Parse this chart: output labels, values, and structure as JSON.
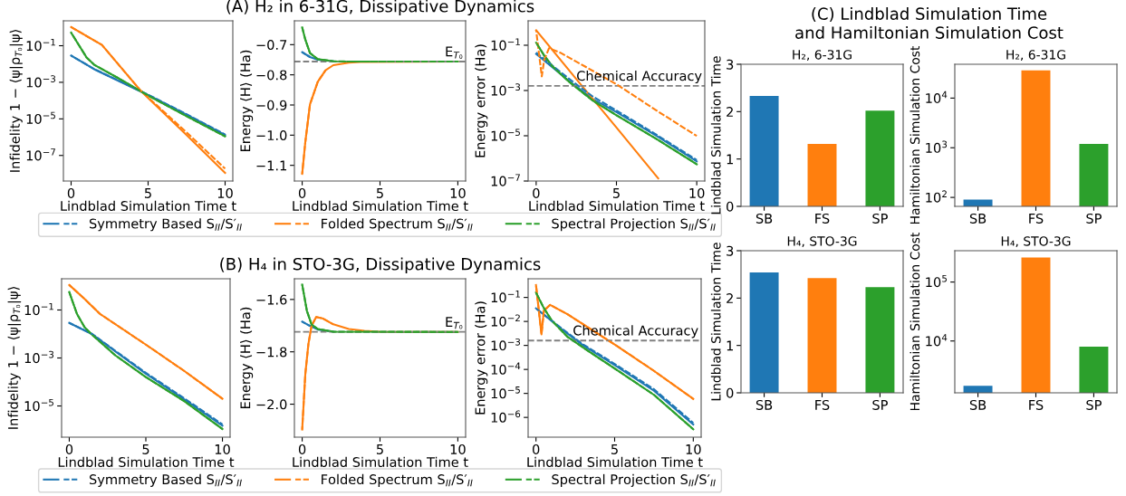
{
  "chart_data": [
    {
      "type": "line",
      "xlabel": "Lindblad Simulation Time t",
      "ylabel": "Infidelity 1 − ⟨ψ|ρ$_{T₀}$|ψ⟩",
      "log": true,
      "xlim": [
        -0.5,
        10.5
      ],
      "xticks": [
        0,
        5,
        10
      ],
      "ylim": [
        4e-09,
        2.3
      ],
      "yticks": [
        {
          "value": 0.1,
          "label": "10$^{−1}$"
        },
        {
          "value": 0.001,
          "label": "10$^{−3}$"
        },
        {
          "value": 1e-05,
          "label": "10$^{−5}$"
        },
        {
          "value": 1e-07,
          "label": "10$^{−7}$"
        }
      ],
      "series": [
        {
          "color": "#1f77b4",
          "x": [
            0,
            1.5,
            5,
            7.5,
            10
          ],
          "values": [
            0.029,
            0.0052,
            0.0002,
            1.7e-05,
            1.3e-06
          ]
        },
        {
          "color": "#1f77b4",
          "line_style": "dashed",
          "x": [
            0,
            1.5,
            5,
            7.5,
            10
          ],
          "values": [
            0.029,
            0.0053,
            0.00021,
            1.8e-05,
            1.4e-06
          ]
        },
        {
          "color": "#ff7f0e",
          "x": [
            0,
            2,
            4.5,
            5,
            7.5,
            10
          ],
          "values": [
            1.05,
            0.11,
            0.00036,
            0.00014,
            1.3e-06,
            1.1e-08
          ]
        },
        {
          "color": "#ff7f0e",
          "line_style": "dashed",
          "x": [
            0,
            2,
            4.5,
            5,
            7.5,
            10
          ],
          "values": [
            1.05,
            0.11,
            0.00036,
            0.00015,
            1.8e-06,
            1.9e-08
          ]
        },
        {
          "color": "#2ca02c",
          "x": [
            0,
            0.5,
            1,
            1.5,
            3,
            5,
            7.5,
            10
          ],
          "values": [
            0.52,
            0.11,
            0.023,
            0.0091,
            0.0018,
            0.00019,
            1.4e-05,
            1.1e-06
          ]
        },
        {
          "color": "#2ca02c",
          "line_style": "dashed",
          "x": [
            0,
            0.5,
            1,
            1.5,
            3,
            5,
            7.5,
            10
          ],
          "values": [
            0.52,
            0.11,
            0.023,
            0.0091,
            0.0018,
            0.00019,
            1.4e-05,
            1.1e-06
          ]
        }
      ]
    },
    {
      "type": "line",
      "title": "(A) H₂ in 6-31G, Dissipative Dynamics",
      "xlabel": "Lindblad Simulation Time t",
      "ylabel": "Energy ⟨H⟩ (Ha)",
      "legend": "bottom",
      "xlim": [
        -0.5,
        10.5
      ],
      "xticks": [
        0,
        5,
        10
      ],
      "ylim": [
        -1.152,
        -0.621
      ],
      "yticks": [
        {
          "value": -0.7,
          "label": "−0.7"
        },
        {
          "value": -0.8,
          "label": "−0.8"
        },
        {
          "value": -0.9,
          "label": "−0.9"
        },
        {
          "value": -1.0,
          "label": "−1.0"
        },
        {
          "value": -1.1,
          "label": "−1.1"
        }
      ],
      "ref_lines": [
        {
          "axis": "y",
          "value": -0.756,
          "label": "E$_{T₀}$",
          "color": "#808080",
          "line_style": "dashed"
        }
      ],
      "series": [
        {
          "name": "Symmetry Based S$_{II}$/S′$_{II}$",
          "color": "#1f77b4",
          "x": [
            0,
            0.5,
            1,
            2
          ],
          "values": [
            -0.725,
            -0.741,
            -0.75,
            -0.755
          ]
        },
        {
          "color": "#1f77b4",
          "line_style": "dashed",
          "x": [
            0,
            0.5
          ],
          "values": [
            -0.725,
            -0.741
          ]
        },
        {
          "name": "Folded Spectrum S$_{II}$/S′$_{II}$",
          "color": "#ff7f0e",
          "x": [
            0,
            0.2,
            0.5,
            1,
            1.5,
            2,
            3,
            4,
            10
          ],
          "values": [
            -1.128,
            -1.023,
            -0.898,
            -0.823,
            -0.785,
            -0.768,
            -0.76,
            -0.757,
            -0.756
          ]
        },
        {
          "color": "#ff7f0e",
          "line_style": "dashed",
          "x": [
            0,
            0.2,
            0.5,
            1,
            1.5
          ],
          "values": [
            -1.128,
            -1.023,
            -0.898,
            -0.823,
            -0.785
          ]
        },
        {
          "name": "Spectral Projection S$_{II}$/S′$_{II}$",
          "color": "#2ca02c",
          "x": [
            0,
            0.2,
            0.5,
            1,
            2,
            3,
            10
          ],
          "values": [
            -0.643,
            -0.683,
            -0.728,
            -0.748,
            -0.755,
            -0.756,
            -0.756
          ]
        },
        {
          "color": "#2ca02c",
          "line_style": "dashed",
          "x": [
            0,
            0.2,
            0.5,
            1,
            2,
            3,
            10
          ],
          "values": [
            -0.643,
            -0.683,
            -0.728,
            -0.748,
            -0.755,
            -0.756,
            -0.756
          ]
        }
      ]
    },
    {
      "type": "line",
      "xlabel": "Lindblad Simulation Time t",
      "ylabel": "Energy error (Ha)",
      "log": true,
      "xlim": [
        -0.5,
        10.5
      ],
      "xticks": [
        0,
        5,
        10
      ],
      "ylim": [
        1e-07,
        1.2
      ],
      "yticks": [
        {
          "value": 0.1,
          "label": "10$^{−1}$"
        },
        {
          "value": 0.001,
          "label": "10$^{−3}$"
        },
        {
          "value": 1e-05,
          "label": "10$^{−5}$"
        },
        {
          "value": 1e-07,
          "label": "10$^{−7}$"
        }
      ],
      "ref_lines": [
        {
          "axis": "y",
          "value": 0.0016,
          "label": "Chemical Accuracy",
          "color": "#808080",
          "line_style": "dashed"
        }
      ],
      "series": [
        {
          "color": "#1f77b4",
          "x": [
            0,
            2,
            3.5,
            5,
            7.5,
            10
          ],
          "values": [
            0.041,
            0.0028,
            0.00043,
            0.00011,
            9.8e-06,
            7.4e-07
          ]
        },
        {
          "color": "#1f77b4",
          "line_style": "dashed",
          "x": [
            0,
            2,
            3.5,
            5,
            7.5,
            10
          ],
          "values": [
            0.047,
            0.0035,
            0.00056,
            0.00013,
            1.1e-05,
            8.5e-07
          ]
        },
        {
          "color": "#ff7f0e",
          "x": [
            0,
            2.5,
            5,
            7.6
          ],
          "values": [
            0.46,
            0.0032,
            2.3e-05,
            1.3e-07
          ]
        },
        {
          "color": "#ff7f0e",
          "line_style": "dashed",
          "x": [
            0,
            0.25,
            0.35,
            0.5,
            0.8,
            1.5,
            3,
            5,
            7.5,
            10
          ],
          "values": [
            0.46,
            0.016,
            0.0042,
            0.022,
            0.074,
            0.047,
            0.012,
            0.0019,
            0.00013,
            9.8e-06
          ]
        },
        {
          "color": "#2ca02c",
          "x": [
            0,
            0.5,
            1,
            2,
            3.5,
            5,
            7.5,
            10
          ],
          "values": [
            0.13,
            0.035,
            0.012,
            0.0026,
            0.00037,
            8.1e-05,
            7.2e-06,
            5.5e-07
          ]
        },
        {
          "color": "#2ca02c",
          "line_style": "dashed",
          "x": [
            0,
            0.5,
            1,
            2,
            3.5,
            5,
            7.5,
            10
          ],
          "values": [
            0.13,
            0.035,
            0.012,
            0.0026,
            0.00037,
            8.1e-05,
            7.2e-06,
            5.5e-07
          ]
        }
      ]
    },
    {
      "type": "line",
      "xlabel": "Lindblad Simulation Time t",
      "ylabel": "Infidelity 1 − ⟨ψ|ρ$_{T₀}$|ψ⟩",
      "log": true,
      "xlim": [
        -0.5,
        10.5
      ],
      "xticks": [
        0,
        5,
        10
      ],
      "ylim": [
        5e-07,
        2
      ],
      "yticks": [
        {
          "value": 0.1,
          "label": "10$^{−1}$"
        },
        {
          "value": 0.001,
          "label": "10$^{−3}$"
        },
        {
          "value": 1e-05,
          "label": "10$^{−5}$"
        }
      ],
      "series": [
        {
          "color": "#1f77b4",
          "x": [
            0,
            1.5,
            3,
            5,
            7.5,
            10
          ],
          "values": [
            0.029,
            0.0098,
            0.0019,
            0.00022,
            1.9e-05,
            1.5e-06
          ]
        },
        {
          "color": "#1f77b4",
          "line_style": "dashed",
          "x": [
            0,
            1.5,
            3,
            5,
            7.5,
            10
          ],
          "values": [
            0.029,
            0.01,
            0.002,
            0.00024,
            2.1e-05,
            1.7e-06
          ]
        },
        {
          "color": "#ff7f0e",
          "x": [
            0,
            1,
            2,
            5,
            7.5,
            10
          ],
          "values": [
            1.1,
            0.29,
            0.069,
            0.0036,
            0.00029,
            2e-05
          ]
        },
        {
          "color": "#ff7f0e",
          "line_style": "dashed",
          "x": [
            0,
            1,
            2,
            5,
            7.5,
            10
          ],
          "values": [
            1.1,
            0.29,
            0.069,
            0.0036,
            0.00029,
            2e-05
          ]
        },
        {
          "color": "#2ca02c",
          "x": [
            0,
            0.5,
            1,
            1.5,
            3,
            5,
            7.5,
            10
          ],
          "values": [
            0.56,
            0.069,
            0.019,
            0.0091,
            0.0013,
            0.00016,
            1.6e-05,
            1.1e-06
          ]
        },
        {
          "color": "#2ca02c",
          "line_style": "dashed",
          "x": [
            0,
            0.5,
            1,
            1.5,
            3,
            5,
            7.5,
            10
          ],
          "values": [
            0.56,
            0.069,
            0.019,
            0.0091,
            0.0013,
            0.00016,
            1.6e-05,
            1.1e-06
          ]
        }
      ]
    },
    {
      "type": "line",
      "title": "(B) H₄ in STO-3G, Dissipative Dynamics",
      "xlabel": "Lindblad Simulation Time t",
      "ylabel": "Energy ⟨H⟩ (Ha)",
      "legend": "bottom",
      "xlim": [
        -0.5,
        10.5
      ],
      "xticks": [
        0,
        5,
        10
      ],
      "ylim": [
        -2.126,
        -1.521
      ],
      "yticks": [
        {
          "value": -1.6,
          "label": "−1.6"
        },
        {
          "value": -1.8,
          "label": "−1.8"
        },
        {
          "value": -2.0,
          "label": "−2.0"
        }
      ],
      "ref_lines": [
        {
          "axis": "y",
          "value": -1.724,
          "label": "E$_{T₀}$",
          "color": "#808080",
          "line_style": "dashed"
        }
      ],
      "series": [
        {
          "name": "Symmetry Based S$_{II}$/S′$_{II}$",
          "color": "#1f77b4",
          "x": [
            0,
            0.5,
            1,
            2
          ],
          "values": [
            -1.685,
            -1.701,
            -1.715,
            -1.723
          ]
        },
        {
          "color": "#1f77b4",
          "line_style": "dashed",
          "x": [
            0,
            0.5
          ],
          "values": [
            -1.685,
            -1.701
          ]
        },
        {
          "name": "Folded Spectrum S$_{II}$/S′$_{II}$",
          "color": "#ff7f0e",
          "x": [
            0,
            0.2,
            0.4,
            0.6,
            0.9,
            1.3,
            2,
            3,
            4,
            5,
            10
          ],
          "values": [
            -2.097,
            -1.885,
            -1.77,
            -1.701,
            -1.667,
            -1.672,
            -1.695,
            -1.713,
            -1.72,
            -1.723,
            -1.724
          ]
        },
        {
          "color": "#ff7f0e",
          "line_style": "dashed",
          "x": [
            0,
            0.2,
            0.4,
            0.6,
            0.9,
            1.3,
            2
          ],
          "values": [
            -2.097,
            -1.885,
            -1.77,
            -1.701,
            -1.667,
            -1.672,
            -1.695
          ]
        },
        {
          "name": "Spectral Projection S$_{II}$/S′$_{II}$",
          "color": "#2ca02c",
          "x": [
            0,
            0.3,
            0.6,
            1,
            2,
            10
          ],
          "values": [
            -1.543,
            -1.643,
            -1.695,
            -1.713,
            -1.723,
            -1.724
          ]
        },
        {
          "color": "#2ca02c",
          "line_style": "dashed",
          "x": [
            0,
            0.3,
            0.6,
            1,
            2,
            10
          ],
          "values": [
            -1.543,
            -1.643,
            -1.695,
            -1.713,
            -1.723,
            -1.724
          ]
        }
      ]
    },
    {
      "type": "line",
      "xlabel": "Lindblad Simulation Time t",
      "ylabel": "Energy error (Ha)",
      "log": true,
      "xlim": [
        -0.5,
        10.5
      ],
      "xticks": [
        0,
        5,
        10
      ],
      "ylim": [
        1.5e-07,
        0.6
      ],
      "yticks": [
        {
          "value": 0.1,
          "label": "10$^{−1}$"
        },
        {
          "value": 0.01,
          "label": "10$^{−2}$"
        },
        {
          "value": 0.001,
          "label": "10$^{−3}$"
        },
        {
          "value": 0.0001,
          "label": "10$^{−4}$"
        },
        {
          "value": 1e-05,
          "label": "10$^{−5}$"
        },
        {
          "value": 1e-06,
          "label": "10$^{−6}$"
        }
      ],
      "ref_lines": [
        {
          "axis": "y",
          "value": 0.0016,
          "label": "Chemical Accuracy",
          "color": "#808080",
          "line_style": "dashed"
        }
      ],
      "series": [
        {
          "color": "#1f77b4",
          "x": [
            0,
            1.5,
            3,
            5,
            7.5,
            10
          ],
          "values": [
            0.035,
            0.0056,
            0.001,
            0.00015,
            1.3e-05,
            5.1e-07
          ]
        },
        {
          "color": "#1f77b4",
          "line_style": "dashed",
          "x": [
            0,
            1.5,
            3,
            5,
            7.5,
            10
          ],
          "values": [
            0.035,
            0.006,
            0.0011,
            0.00017,
            1.5e-05,
            5.9e-07
          ]
        },
        {
          "color": "#ff7f0e",
          "x": [
            0,
            0.35,
            0.5,
            0.9,
            2,
            5,
            7.5,
            10
          ],
          "values": [
            0.33,
            0.0029,
            0.028,
            0.049,
            0.02,
            0.0011,
            8.7e-05,
            5.9e-06
          ]
        },
        {
          "color": "#ff7f0e",
          "line_style": "dashed",
          "x": [
            0,
            0.35,
            0.5,
            0.9,
            2,
            5,
            7.5,
            10
          ],
          "values": [
            0.33,
            0.0029,
            0.028,
            0.049,
            0.02,
            0.0011,
            8.7e-05,
            5.9e-06
          ]
        },
        {
          "color": "#2ca02c",
          "x": [
            0,
            0.5,
            1,
            2,
            3.5,
            5,
            7.5,
            10
          ],
          "values": [
            0.16,
            0.036,
            0.011,
            0.0023,
            0.00049,
            0.00011,
            8.7e-06,
            3.2e-07
          ]
        },
        {
          "color": "#2ca02c",
          "line_style": "dashed",
          "x": [
            0,
            0.5,
            1,
            2,
            3.5,
            5,
            7.5,
            10
          ],
          "values": [
            0.16,
            0.036,
            0.011,
            0.0023,
            0.00049,
            0.00011,
            8.7e-06,
            3.2e-07
          ]
        }
      ]
    },
    {
      "type": "bar",
      "title": "H₂, 6-31G",
      "ylabel": "Lindblad Simulation Time",
      "annotations": [
        "(C) Lindblad Simulation Time\nand Hamiltonian Simulation Cost"
      ],
      "categories": [
        "SB",
        "FS",
        "SP"
      ],
      "values": [
        2.33,
        1.32,
        2.02
      ],
      "colors": [
        "#1f77b4",
        "#ff7f0e",
        "#2ca02c"
      ],
      "ylim": [
        0,
        3
      ],
      "yticks": [
        0,
        1,
        2,
        3
      ]
    },
    {
      "type": "bar",
      "title": "H₂, 6-31G",
      "ylabel": "Hamiltonian Simulation Cost",
      "log": true,
      "categories": [
        "SB",
        "FS",
        "SP"
      ],
      "values": [
        90,
        36000,
        1200
      ],
      "colors": [
        "#1f77b4",
        "#ff7f0e",
        "#2ca02c"
      ],
      "ylim": [
        66,
        48000
      ],
      "yticks": [
        {
          "value": 100,
          "label": "10$^{2}$"
        },
        {
          "value": 1000,
          "label": "10$^{3}$"
        },
        {
          "value": 10000,
          "label": "10$^{4}$"
        }
      ]
    },
    {
      "type": "bar",
      "title": "H₄, STO-3G",
      "ylabel": "Lindblad Simulation Time",
      "categories": [
        "SB",
        "FS",
        "SP"
      ],
      "values": [
        2.54,
        2.42,
        2.23
      ],
      "colors": [
        "#1f77b4",
        "#ff7f0e",
        "#2ca02c"
      ],
      "ylim": [
        0,
        3
      ],
      "yticks": [
        0,
        1,
        2,
        3
      ]
    },
    {
      "type": "bar",
      "title": "H₄, STO-3G",
      "ylabel": "Hamiltonian Simulation Cost",
      "log": true,
      "categories": [
        "SB",
        "FS",
        "SP"
      ],
      "values": [
        1740,
        260000,
        8000
      ],
      "colors": [
        "#1f77b4",
        "#ff7f0e",
        "#2ca02c"
      ],
      "ylim": [
        1320,
        340000
      ],
      "yticks": [
        {
          "value": 10000,
          "label": "10$^{4}$"
        },
        {
          "value": 100000,
          "label": "10$^{5}$"
        }
      ]
    }
  ]
}
